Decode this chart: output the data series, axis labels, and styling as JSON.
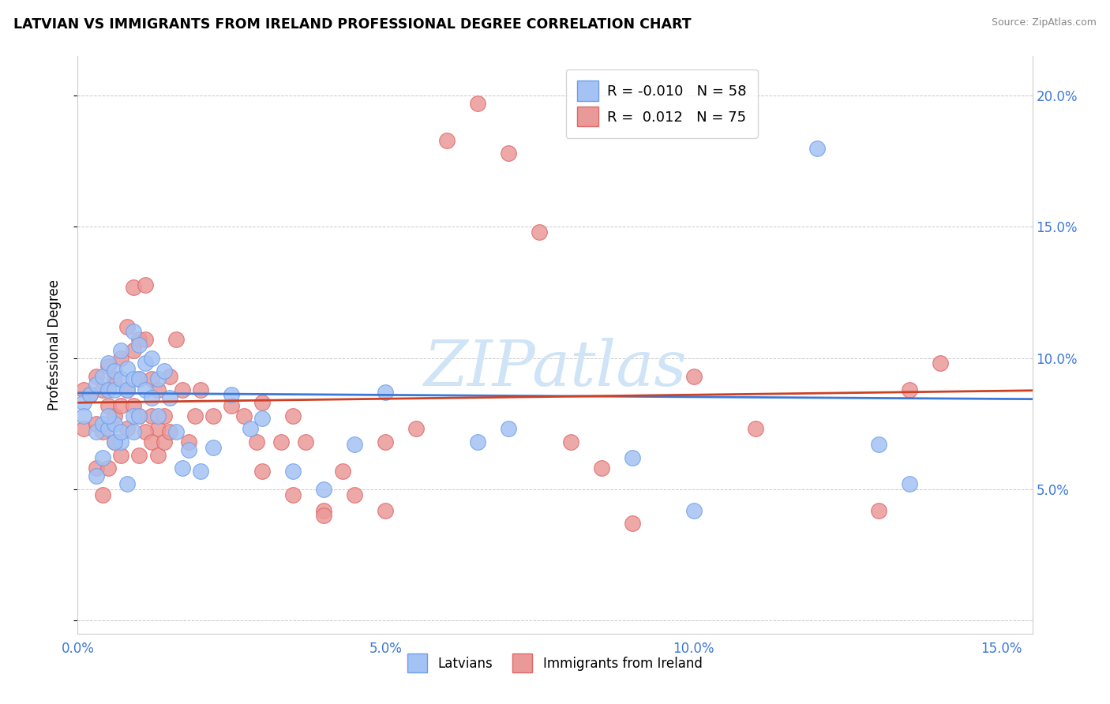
{
  "title": "LATVIAN VS IMMIGRANTS FROM IRELAND PROFESSIONAL DEGREE CORRELATION CHART",
  "source": "Source: ZipAtlas.com",
  "ylabel": "Professional Degree",
  "xlim": [
    0.0,
    0.155
  ],
  "ylim": [
    -0.005,
    0.215
  ],
  "xticks": [
    0.0,
    0.05,
    0.1,
    0.15
  ],
  "xticklabels": [
    "0.0%",
    "5.0%",
    "10.0%",
    "15.0%"
  ],
  "yticks_right": [
    0.0,
    0.05,
    0.1,
    0.15,
    0.2
  ],
  "yticklabels_right": [
    "",
    "5.0%",
    "10.0%",
    "15.0%",
    "20.0%"
  ],
  "legend_r_blue": "-0.010",
  "legend_n_blue": "58",
  "legend_r_pink": "0.012",
  "legend_n_pink": "75",
  "blue_color": "#a4c2f4",
  "pink_color": "#ea9999",
  "blue_edge_color": "#6d9eeb",
  "pink_edge_color": "#e06666",
  "blue_line_color": "#3c78d8",
  "pink_line_color": "#cc4125",
  "watermark_color": "#d0e4f7",
  "blue_x": [
    0.001,
    0.001,
    0.002,
    0.003,
    0.003,
    0.004,
    0.004,
    0.005,
    0.005,
    0.005,
    0.006,
    0.006,
    0.006,
    0.007,
    0.007,
    0.007,
    0.008,
    0.008,
    0.009,
    0.009,
    0.009,
    0.01,
    0.01,
    0.01,
    0.011,
    0.011,
    0.012,
    0.012,
    0.013,
    0.013,
    0.014,
    0.015,
    0.016,
    0.017,
    0.018,
    0.02,
    0.022,
    0.025,
    0.028,
    0.03,
    0.035,
    0.04,
    0.045,
    0.05,
    0.065,
    0.07,
    0.09,
    0.1,
    0.12,
    0.13,
    0.003,
    0.004,
    0.005,
    0.006,
    0.007,
    0.008,
    0.009,
    0.135
  ],
  "blue_y": [
    0.083,
    0.078,
    0.086,
    0.09,
    0.072,
    0.093,
    0.075,
    0.098,
    0.088,
    0.073,
    0.095,
    0.088,
    0.075,
    0.103,
    0.092,
    0.068,
    0.096,
    0.088,
    0.11,
    0.092,
    0.078,
    0.105,
    0.092,
    0.078,
    0.098,
    0.088,
    0.1,
    0.085,
    0.092,
    0.078,
    0.095,
    0.085,
    0.072,
    0.058,
    0.065,
    0.057,
    0.066,
    0.086,
    0.073,
    0.077,
    0.057,
    0.05,
    0.067,
    0.087,
    0.068,
    0.073,
    0.062,
    0.042,
    0.18,
    0.067,
    0.055,
    0.062,
    0.078,
    0.068,
    0.072,
    0.052,
    0.072,
    0.052
  ],
  "pink_x": [
    0.001,
    0.001,
    0.002,
    0.003,
    0.003,
    0.004,
    0.004,
    0.005,
    0.005,
    0.006,
    0.006,
    0.007,
    0.007,
    0.008,
    0.008,
    0.009,
    0.009,
    0.01,
    0.01,
    0.01,
    0.011,
    0.011,
    0.012,
    0.012,
    0.013,
    0.013,
    0.014,
    0.015,
    0.016,
    0.017,
    0.018,
    0.019,
    0.02,
    0.022,
    0.025,
    0.027,
    0.029,
    0.03,
    0.033,
    0.035,
    0.037,
    0.04,
    0.043,
    0.045,
    0.05,
    0.055,
    0.06,
    0.065,
    0.03,
    0.035,
    0.04,
    0.05,
    0.07,
    0.075,
    0.08,
    0.085,
    0.09,
    0.1,
    0.11,
    0.13,
    0.135,
    0.14,
    0.003,
    0.004,
    0.005,
    0.006,
    0.007,
    0.008,
    0.009,
    0.01,
    0.011,
    0.012,
    0.013,
    0.014,
    0.015
  ],
  "pink_y": [
    0.088,
    0.073,
    0.086,
    0.093,
    0.075,
    0.088,
    0.072,
    0.097,
    0.082,
    0.092,
    0.078,
    0.1,
    0.082,
    0.112,
    0.088,
    0.127,
    0.103,
    0.107,
    0.092,
    0.078,
    0.128,
    0.107,
    0.092,
    0.078,
    0.088,
    0.073,
    0.078,
    0.093,
    0.107,
    0.088,
    0.068,
    0.078,
    0.088,
    0.078,
    0.082,
    0.078,
    0.068,
    0.083,
    0.068,
    0.078,
    0.068,
    0.042,
    0.057,
    0.048,
    0.068,
    0.073,
    0.183,
    0.197,
    0.057,
    0.048,
    0.04,
    0.042,
    0.178,
    0.148,
    0.068,
    0.058,
    0.037,
    0.093,
    0.073,
    0.042,
    0.088,
    0.098,
    0.058,
    0.048,
    0.058,
    0.068,
    0.063,
    0.073,
    0.082,
    0.063,
    0.072,
    0.068,
    0.063,
    0.068,
    0.072
  ]
}
